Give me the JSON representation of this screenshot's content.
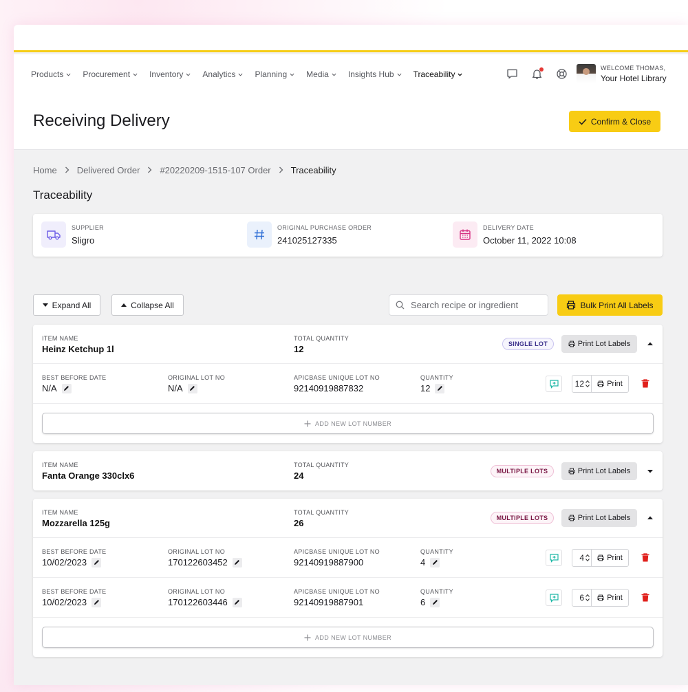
{
  "nav": {
    "items": [
      {
        "label": "Products"
      },
      {
        "label": "Procurement"
      },
      {
        "label": "Inventory"
      },
      {
        "label": "Analytics"
      },
      {
        "label": "Planning"
      },
      {
        "label": "Media"
      },
      {
        "label": "Insights Hub"
      },
      {
        "label": "Traceability"
      }
    ],
    "active": "Traceability"
  },
  "user": {
    "welcome": "WELCOME THOMAS,",
    "org": "Your Hotel Library"
  },
  "page": {
    "title": "Receiving Delivery",
    "confirm_label": "Confirm & Close"
  },
  "breadcrumb": [
    "Home",
    "Delivered Order",
    "#20220209-1515-107 Order",
    "Traceability"
  ],
  "section_title": "Traceability",
  "info": {
    "supplier_label": "SUPPLIER",
    "supplier": "Sligro",
    "po_label": "ORIGINAL PURCHASE ORDER",
    "po": "241025127335",
    "date_label": "DELIVERY DATE",
    "date": "October 11, 2022 10:08"
  },
  "toolbar": {
    "expand_all": "Expand All",
    "collapse_all": "Collapse All",
    "search_placeholder": "Search recipe or ingredient",
    "bulk_print": "Bulk Print All Labels"
  },
  "labels": {
    "item_name": "ITEM NAME",
    "total_quantity": "TOTAL QUANTITY",
    "best_before": "BEST BEFORE DATE",
    "original_lot": "ORIGINAL LOT NO",
    "unique_lot": "APICBASE UNIQUE LOT NO",
    "quantity": "QUANTITY",
    "print_lot_labels": "Print Lot Labels",
    "print": "Print",
    "add_lot": "ADD NEW LOT NUMBER"
  },
  "items": [
    {
      "name": "Heinz Ketchup 1l",
      "total": "12",
      "badge": "SINGLE LOT",
      "lots": [
        {
          "best_before": "N/A",
          "original_lot": "N/A",
          "unique_lot": "92140919887832",
          "quantity": "12",
          "print_qty": "12"
        }
      ]
    },
    {
      "name": "Fanta Orange 330clx6",
      "total": "24",
      "badge": "MULTIPLE LOTS",
      "lots": []
    },
    {
      "name": "Mozzarella 125g",
      "total": "26",
      "badge": "MULTIPLE LOTS",
      "lots": [
        {
          "best_before": "10/02/2023",
          "original_lot": "170122603452",
          "unique_lot": "92140919887900",
          "quantity": "4",
          "print_qty": "4"
        },
        {
          "best_before": "10/02/2023",
          "original_lot": "170122603446",
          "unique_lot": "92140919887901",
          "quantity": "6",
          "print_qty": "6"
        }
      ]
    }
  ],
  "colors": {
    "accent_yellow": "#f8cc14",
    "delete_red": "#e0201c",
    "note_teal": "#1fb8a6",
    "supplier_icon": "#6c5ce7",
    "po_icon": "#2f6fd6",
    "date_icon": "#d63384"
  }
}
